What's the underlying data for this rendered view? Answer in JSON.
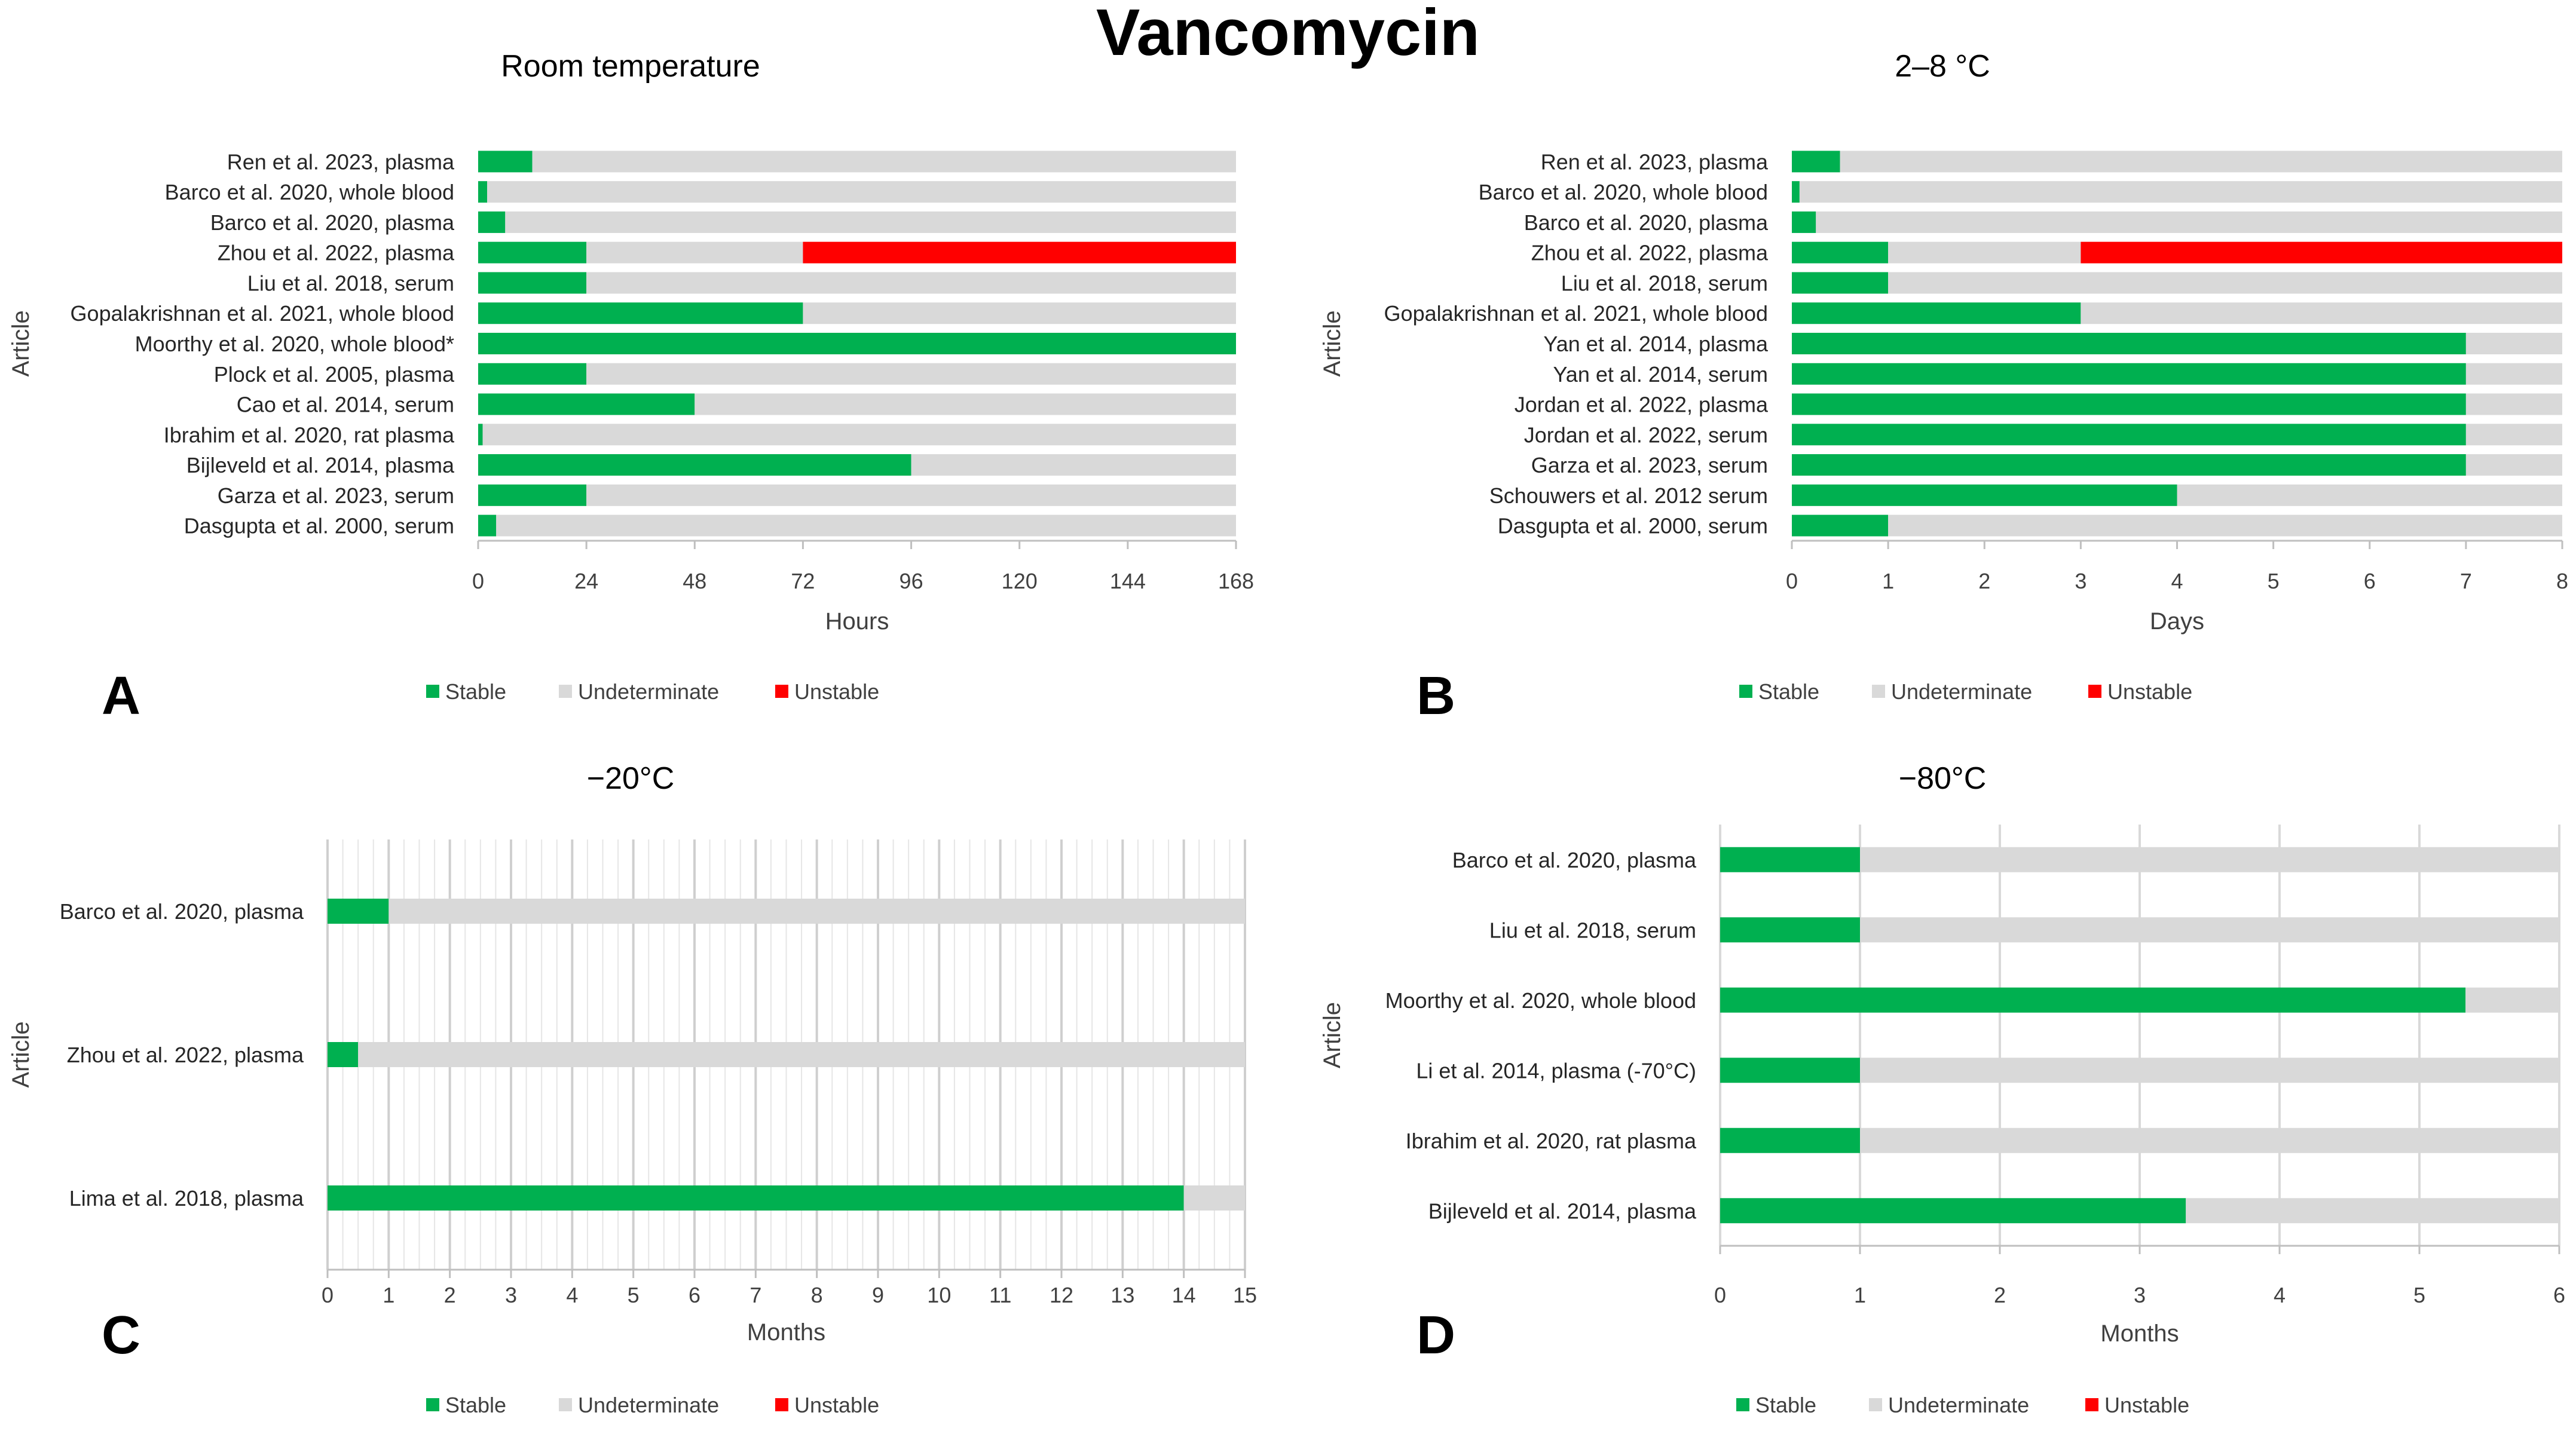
{
  "title": "Vancomycin",
  "legend_labels": [
    "Stable",
    "Undeterminate",
    "Unstable"
  ],
  "colors": {
    "stable": "#00b050",
    "undeterminate": "#d9d9d9",
    "unstable": "#ff0000",
    "grid": "#d9d9d9",
    "axis": "#bfbfbf"
  },
  "chart_data": [
    {
      "panel": "A",
      "type": "bar",
      "orientation": "horizontal",
      "stacked": true,
      "title": "Room temperature",
      "xlabel": "Hours",
      "ylabel": "Article",
      "xlim": [
        0,
        168
      ],
      "xticks": [
        0,
        24,
        48,
        72,
        96,
        120,
        144,
        168
      ],
      "grid": "none",
      "legend": "bottom",
      "categories": [
        "Ren et al. 2023, plasma",
        "Barco et al. 2020, whole blood",
        "Barco et al. 2020, plasma",
        "Zhou et al. 2022, plasma",
        "Liu et al. 2018, serum",
        "Gopalakrishnan et al. 2021, whole blood",
        "Moorthy et al. 2020, whole blood*",
        "Plock et al. 2005, plasma",
        "Cao et al. 2014, serum",
        "Ibrahim et al. 2020, rat plasma",
        "Bijleveld et al. 2014, plasma",
        "Garza et al. 2023, serum",
        "Dasgupta et al. 2000, serum"
      ],
      "series": [
        {
          "name": "Stable",
          "values": [
            12,
            2,
            6,
            24,
            24,
            72,
            168,
            24,
            48,
            1,
            96,
            24,
            4
          ]
        },
        {
          "name": "Undeterminate",
          "values": [
            156,
            166,
            162,
            48,
            144,
            96,
            0,
            144,
            120,
            167,
            72,
            144,
            164
          ]
        },
        {
          "name": "Unstable",
          "values": [
            0,
            0,
            0,
            96,
            0,
            0,
            0,
            0,
            0,
            0,
            0,
            0,
            0
          ]
        }
      ]
    },
    {
      "panel": "B",
      "type": "bar",
      "orientation": "horizontal",
      "stacked": true,
      "title": "2–8 °C",
      "xlabel": "Days",
      "ylabel": "Article",
      "xlim": [
        0,
        8
      ],
      "xticks": [
        0,
        1,
        2,
        3,
        4,
        5,
        6,
        7,
        8
      ],
      "grid": "none",
      "legend": "bottom",
      "categories": [
        "Ren et al. 2023, plasma",
        "Barco et al. 2020, whole blood",
        "Barco et al. 2020, plasma",
        "Zhou et al. 2022, plasma",
        "Liu et al. 2018, serum",
        "Gopalakrishnan et al. 2021, whole blood",
        "Yan et al. 2014, plasma",
        "Yan et al. 2014, serum",
        "Jordan et al. 2022, plasma",
        "Jordan et al. 2022, serum",
        "Garza et al. 2023, serum",
        "Schouwers et al. 2012 serum",
        "Dasgupta et al. 2000, serum"
      ],
      "series": [
        {
          "name": "Stable",
          "values": [
            0.5,
            0.08,
            0.25,
            1,
            1,
            3,
            7,
            7,
            7,
            7,
            7,
            4,
            1
          ]
        },
        {
          "name": "Undeterminate",
          "values": [
            7.5,
            7.92,
            7.75,
            2,
            7,
            5,
            1,
            1,
            1,
            1,
            1,
            4,
            7
          ]
        },
        {
          "name": "Unstable",
          "values": [
            0,
            0,
            0,
            5,
            0,
            0,
            0,
            0,
            0,
            0,
            0,
            0,
            0
          ]
        }
      ]
    },
    {
      "panel": "C",
      "type": "bar",
      "orientation": "horizontal",
      "stacked": true,
      "title": "−20°C",
      "xlabel": "Months",
      "ylabel": "Article",
      "xlim": [
        0,
        15
      ],
      "xticks": [
        0,
        1,
        2,
        3,
        4,
        5,
        6,
        7,
        8,
        9,
        10,
        11,
        12,
        13,
        14,
        15
      ],
      "grid": "major-and-minor-vertical",
      "legend": "bottom",
      "categories": [
        "Barco et al. 2020, plasma",
        "Zhou et al. 2022, plasma",
        "Lima et al. 2018, plasma"
      ],
      "series": [
        {
          "name": "Stable",
          "values": [
            1,
            0.5,
            14
          ]
        },
        {
          "name": "Undeterminate",
          "values": [
            14,
            14.5,
            1
          ]
        },
        {
          "name": "Unstable",
          "values": [
            0,
            0,
            0
          ]
        }
      ]
    },
    {
      "panel": "D",
      "type": "bar",
      "orientation": "horizontal",
      "stacked": true,
      "title": "−80°C",
      "xlabel": "Months",
      "ylabel": "Article",
      "xlim": [
        0,
        6
      ],
      "xticks": [
        0,
        1,
        2,
        3,
        4,
        5,
        6
      ],
      "grid": "vertical",
      "legend": "bottom",
      "categories": [
        "Barco et al. 2020, plasma",
        "Liu et al. 2018, serum",
        "Moorthy et al. 2020, whole blood",
        "Li et al. 2014, plasma (-70°C)",
        "Ibrahim et al. 2020, rat plasma",
        "Bijleveld et al. 2014, plasma"
      ],
      "series": [
        {
          "name": "Stable",
          "values": [
            1,
            1,
            5.33,
            1,
            1,
            3.33
          ]
        },
        {
          "name": "Undeterminate",
          "values": [
            5,
            5,
            0.67,
            5,
            5,
            2.67
          ]
        },
        {
          "name": "Unstable",
          "values": [
            0,
            0,
            0,
            0,
            0,
            0
          ]
        }
      ]
    }
  ]
}
